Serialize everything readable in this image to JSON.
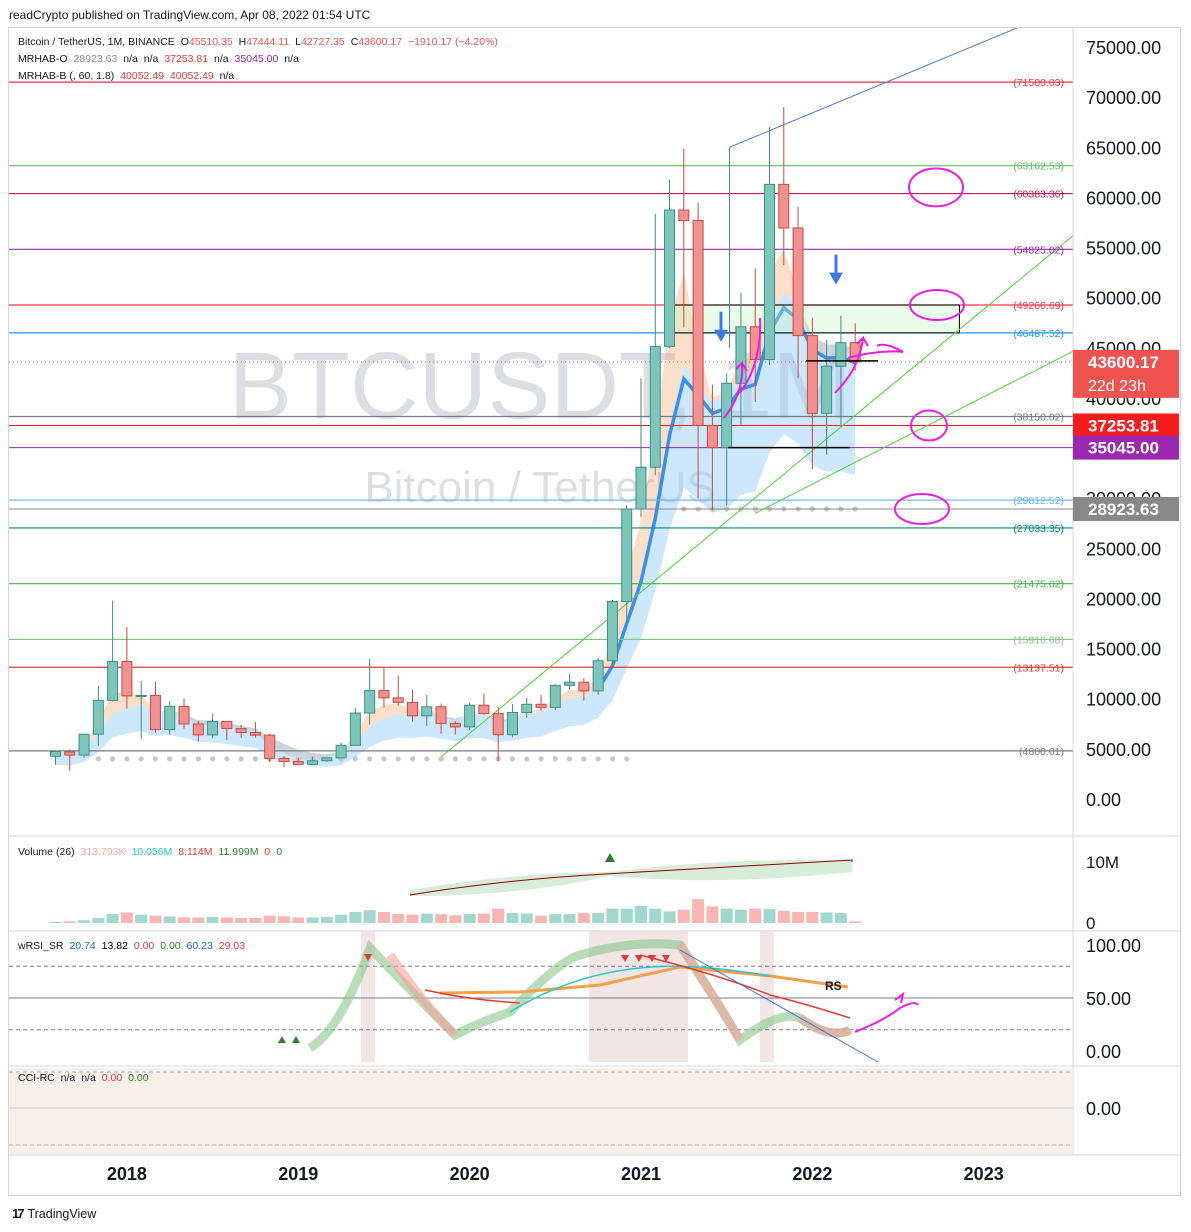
{
  "publisher": "readCrypto published on TradingView.com, Apr 08, 2022 01:54 UTC",
  "footer": {
    "brand": "TradingView",
    "logo_icon": "tradingview-logo-icon"
  },
  "watermark": {
    "symbol": "BTCUSDT, 1M",
    "description": "Bitcoin / TetherUS"
  },
  "legend": {
    "symbol": {
      "name": "Bitcoin / TetherUS, 1M, BINANCE",
      "o_label": "O",
      "o": "45510.35",
      "h_label": "H",
      "h": "47444.11",
      "l_label": "L",
      "l": "42727.35",
      "c_label": "C",
      "c": "43600.17",
      "change": "−1910.17 (−4.20%)",
      "change_color": "#ef5350"
    },
    "mrhab_o": {
      "name": "MRHAB-O",
      "v1": "28923.63",
      "v2": "n/a",
      "v3": "n/a",
      "v4": "37253.81",
      "v5": "n/a",
      "v6": "35045.00",
      "v7": "n/a"
    },
    "mrhab_b": {
      "name": "MRHAB-B (, 60, 1.8)",
      "v1": "40052.49",
      "v2": "40052.49",
      "v3": "n/a"
    },
    "volume": {
      "name": "Volume (26)",
      "v1": "313.793K",
      "v2": "10.056M",
      "v3": "8.114M",
      "v4": "11.999M",
      "v5": "0",
      "v6": "0"
    },
    "wrsi": {
      "name": "wRSI_SR",
      "v1": "20.74",
      "v2": "13.82",
      "v3": "0.00",
      "v4": "0.00",
      "v5": "60.23",
      "v6": "29.03"
    },
    "cci": {
      "name": "CCI-RC",
      "v1": "n/a",
      "v2": "n/a",
      "v3": "0.00",
      "v4": "0.00"
    }
  },
  "price_axis": {
    "ticks": [
      "75000.00",
      "70000.00",
      "65000.00",
      "60000.00",
      "55000.00",
      "50000.00",
      "45000.00",
      "40000.00",
      "35000.00",
      "30000.00",
      "25000.00",
      "20000.00",
      "15000.00",
      "10000.00",
      "5000.00",
      "0.00"
    ],
    "badges": [
      {
        "value": 43600.17,
        "label": "43600.17",
        "sub": "22d 23h",
        "color": "#ef5350"
      },
      {
        "value": 37253.81,
        "label": "37253.81",
        "color": "#f71c1c"
      },
      {
        "value": 35045.0,
        "label": "35045.00",
        "color": "#9c27b0"
      },
      {
        "value": 28923.63,
        "label": "28923.63",
        "color": "#888888"
      }
    ]
  },
  "volume_axis": {
    "ticks": [
      "10M",
      "0"
    ]
  },
  "rsi_axis": {
    "ticks": [
      "100.00",
      "50.00",
      "0.00"
    ],
    "rs_label": "RS"
  },
  "cci_axis": {
    "ticks": [
      "0.00"
    ]
  },
  "time_axis": {
    "ticks": [
      "2018",
      "2019",
      "2020",
      "2021",
      "2022",
      "2023"
    ]
  },
  "chart_data": {
    "type": "candlestick",
    "symbol": "BTCUSDT",
    "timeframe": "1M",
    "exchange": "BINANCE",
    "ylim": [
      -1000,
      76500
    ],
    "x_start": "2017-08",
    "months": [
      "2017-08",
      "2017-09",
      "2017-10",
      "2017-11",
      "2017-12",
      "2018-01",
      "2018-02",
      "2018-03",
      "2018-04",
      "2018-05",
      "2018-06",
      "2018-07",
      "2018-08",
      "2018-09",
      "2018-10",
      "2018-11",
      "2018-12",
      "2019-01",
      "2019-02",
      "2019-03",
      "2019-04",
      "2019-05",
      "2019-06",
      "2019-07",
      "2019-08",
      "2019-09",
      "2019-10",
      "2019-11",
      "2019-12",
      "2020-01",
      "2020-02",
      "2020-03",
      "2020-04",
      "2020-05",
      "2020-06",
      "2020-07",
      "2020-08",
      "2020-09",
      "2020-10",
      "2020-11",
      "2020-12",
      "2021-01",
      "2021-02",
      "2021-03",
      "2021-04",
      "2021-05",
      "2021-06",
      "2021-07",
      "2021-08",
      "2021-09",
      "2021-10",
      "2021-11",
      "2021-12",
      "2022-01",
      "2022-02",
      "2022-03",
      "2022-04"
    ],
    "ohlc": [
      [
        4261,
        4745,
        3400,
        4724
      ],
      [
        4690,
        4939,
        2817,
        4378
      ],
      [
        4378,
        6470,
        4110,
        6463
      ],
      [
        6463,
        11300,
        5325,
        9838
      ],
      [
        9838,
        19798,
        9722,
        13716
      ],
      [
        13716,
        17176,
        9035,
        10285
      ],
      [
        10285,
        11786,
        6000,
        10326
      ],
      [
        10326,
        11711,
        6600,
        6923
      ],
      [
        6923,
        9759,
        6430,
        9246
      ],
      [
        9246,
        10020,
        7032,
        7485
      ],
      [
        7485,
        7786,
        5750,
        6391
      ],
      [
        6391,
        8507,
        6070,
        7730
      ],
      [
        7730,
        7769,
        5880,
        7025
      ],
      [
        7025,
        7410,
        6100,
        6626
      ],
      [
        6626,
        7680,
        6102,
        6371
      ],
      [
        6371,
        6500,
        3652,
        4041
      ],
      [
        4041,
        4236,
        3156,
        3742
      ],
      [
        3742,
        4069,
        3349,
        3458
      ],
      [
        3458,
        4200,
        3373,
        3813
      ],
      [
        3813,
        4140,
        3690,
        4105
      ],
      [
        4105,
        5624,
        4050,
        5350
      ],
      [
        5350,
        9074,
        5339,
        8574
      ],
      [
        8574,
        13970,
        7414,
        10817
      ],
      [
        10817,
        13203,
        9112,
        10086
      ],
      [
        10086,
        12325,
        9320,
        9630
      ],
      [
        9630,
        10905,
        7710,
        8293
      ],
      [
        8293,
        10370,
        7300,
        9199
      ],
      [
        9199,
        9505,
        6515,
        7546
      ],
      [
        7546,
        7750,
        6435,
        7194
      ],
      [
        7194,
        9578,
        6850,
        9352
      ],
      [
        9352,
        10500,
        8410,
        8523
      ],
      [
        8523,
        9188,
        3782,
        6411
      ],
      [
        6411,
        9460,
        6150,
        8624
      ],
      [
        8624,
        10080,
        8106,
        9446
      ],
      [
        9446,
        10380,
        8833,
        9138
      ],
      [
        9138,
        11444,
        8893,
        11335
      ],
      [
        11335,
        12468,
        10960,
        11649
      ],
      [
        11649,
        12050,
        9825,
        10776
      ],
      [
        10776,
        14100,
        10375,
        13791
      ],
      [
        13791,
        19863,
        13195,
        19695
      ],
      [
        19695,
        29300,
        17572,
        28923
      ],
      [
        28923,
        41950,
        28130,
        33092
      ],
      [
        33092,
        58352,
        32296,
        45135
      ],
      [
        45135,
        61781,
        44950,
        58740
      ],
      [
        58740,
        64854,
        47044,
        57694
      ],
      [
        57694,
        59500,
        30000,
        37253
      ],
      [
        37253,
        41330,
        28805,
        35045
      ],
      [
        35045,
        42448,
        29278,
        41461
      ],
      [
        41461,
        50500,
        37332,
        47100
      ],
      [
        47100,
        52920,
        39600,
        43824
      ],
      [
        43824,
        66999,
        43283,
        61300
      ],
      [
        61300,
        69000,
        53256,
        56950
      ],
      [
        56950,
        59053,
        42000,
        46217
      ],
      [
        46217,
        47990,
        32917,
        38466
      ],
      [
        38466,
        45821,
        34322,
        43160
      ],
      [
        43160,
        48189,
        37155,
        45510
      ],
      [
        45510,
        47444,
        42727,
        43600
      ]
    ],
    "horizontal_levels": [
      {
        "value": 71500.03,
        "label": "(71500.03)",
        "color": "#f23645"
      },
      {
        "value": 63162.53,
        "label": "(63162.53)",
        "color": "#66bb6a"
      },
      {
        "value": 60383.36,
        "label": "(60383.36)",
        "color": "#c2185b"
      },
      {
        "value": 54825.02,
        "label": "(54825.02)",
        "color": "#9c27b0"
      },
      {
        "value": 49266.69,
        "label": "(49266.69)",
        "color": "#f23645"
      },
      {
        "value": 46487.52,
        "label": "(46487.52)",
        "color": "#2196f3"
      },
      {
        "value": 38150.02,
        "label": "(38150.02)",
        "color": "#787b86"
      },
      {
        "value": 29812.52,
        "label": "(29812.52)",
        "color": "#64b5f6"
      },
      {
        "value": 27033.35,
        "label": "(27033.35)",
        "color": "#00897b"
      },
      {
        "value": 21475.02,
        "label": "(21475.02)",
        "color": "#4caf50"
      },
      {
        "value": 15916.68,
        "label": "(15916.68)",
        "color": "#81c784"
      },
      {
        "value": 13137.51,
        "label": "(13137.51)",
        "color": "#e53935"
      },
      {
        "value": 4800.01,
        "label": "(4800.01)",
        "color": "#787b86"
      }
    ],
    "extra_lines": [
      {
        "value": 37253.81,
        "color": "#f71c1c"
      },
      {
        "value": 35045.0,
        "color": "#9c27b0"
      },
      {
        "value": 28923.63,
        "color": "#888888"
      }
    ],
    "volume": [
      0.2,
      0.3,
      0.5,
      0.9,
      1.6,
      1.9,
      1.5,
      1.3,
      1.2,
      1.0,
      1.0,
      1.1,
      1.0,
      0.9,
      0.9,
      1.3,
      1.2,
      1.0,
      1.0,
      1.1,
      1.5,
      2.0,
      2.3,
      2.0,
      1.6,
      1.5,
      1.7,
      1.6,
      1.4,
      1.6,
      1.7,
      2.6,
      1.8,
      1.7,
      1.3,
      1.6,
      1.6,
      1.8,
      1.8,
      2.6,
      2.6,
      3.1,
      2.6,
      2.1,
      2.4,
      4.3,
      3.0,
      2.6,
      2.4,
      2.6,
      2.5,
      2.2,
      2.0,
      2.0,
      1.9,
      1.8,
      0.3
    ],
    "rsi_levels": [
      80,
      50,
      20
    ],
    "colors": {
      "up": "#7ec6bb",
      "down": "#f0928f",
      "band_orange": "#f5a46b",
      "band_blue": "#90caf9",
      "trend_green": "#4cd137",
      "trend_blue": "#4a7bd6",
      "marker_magenta": "#e91ee3"
    }
  }
}
